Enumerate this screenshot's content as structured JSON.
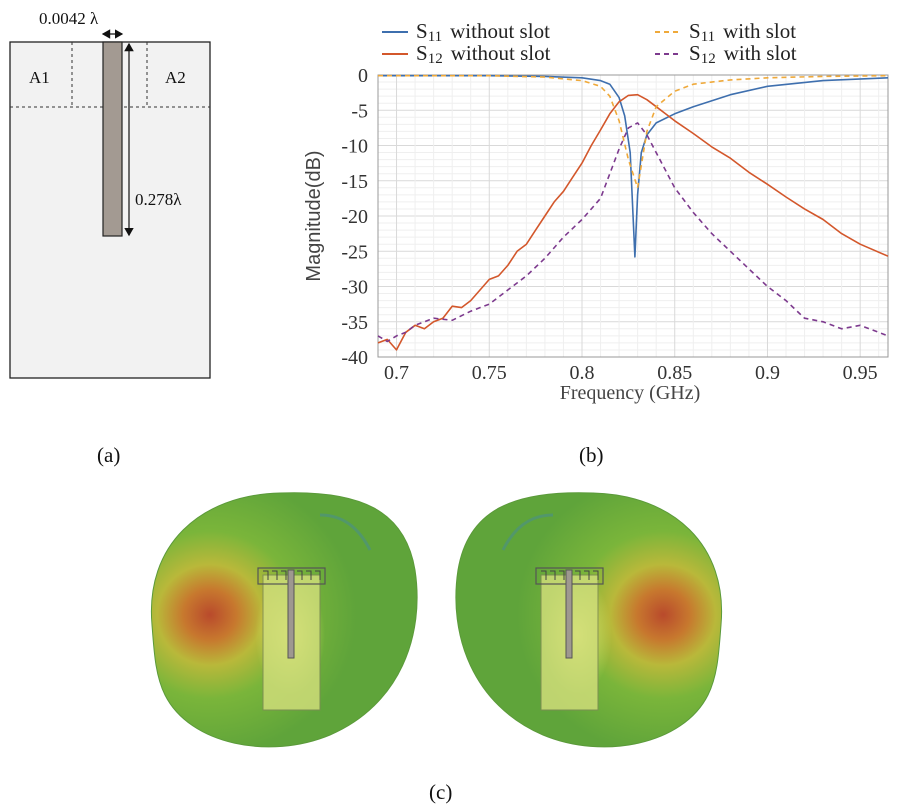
{
  "panel_a": {
    "label": "(a)",
    "width_dim": "0.0042 λ",
    "length_dim": "0.278λ",
    "area_left": "A1",
    "area_right": "A2"
  },
  "panel_b": {
    "label": "(b)",
    "legend": [
      {
        "sym": "S",
        "sub": "11",
        "text": "without slot",
        "color": "#3e6fae",
        "dash": ""
      },
      {
        "sym": "S",
        "sub": "12",
        "text": "without slot",
        "color": "#d3572b",
        "dash": ""
      },
      {
        "sym": "S",
        "sub": "11",
        "text": "with slot",
        "color": "#efa93a",
        "dash": "5,4"
      },
      {
        "sym": "S",
        "sub": "12",
        "text": "with slot",
        "color": "#7d3a8e",
        "dash": "5,4"
      }
    ]
  },
  "panel_c": {
    "label": "(c)"
  },
  "chart_data": {
    "type": "line",
    "xlabel": "Frequency (GHz)",
    "ylabel": "Magnitude(dB)",
    "xlim": [
      0.69,
      0.965
    ],
    "ylim": [
      -40,
      0
    ],
    "xticks": [
      0.7,
      0.75,
      0.8,
      0.85,
      0.9,
      0.95
    ],
    "xtick_labels": [
      "0.7",
      "0.75",
      "0.8",
      "0.85",
      "0.9",
      "0.95"
    ],
    "yticks": [
      0,
      -5,
      -10,
      -15,
      -20,
      -25,
      -30,
      -35,
      -40
    ],
    "ytick_labels": [
      "0",
      "-5",
      "-10",
      "-15",
      "-20",
      "-25",
      "-30",
      "-35",
      "-40"
    ],
    "grid": true,
    "legend_position": "top",
    "series": [
      {
        "name": "S11 without slot",
        "color": "#3e6fae",
        "dash": "",
        "x": [
          0.69,
          0.75,
          0.78,
          0.8,
          0.81,
          0.815,
          0.82,
          0.823,
          0.826,
          0.8285,
          0.83,
          0.832,
          0.835,
          0.84,
          0.85,
          0.86,
          0.88,
          0.9,
          0.93,
          0.965
        ],
        "y": [
          -0.1,
          -0.1,
          -0.2,
          -0.4,
          -0.8,
          -1.3,
          -3.2,
          -5.8,
          -11,
          -25.8,
          -17,
          -11,
          -8.5,
          -6.8,
          -5.5,
          -4.5,
          -2.8,
          -1.6,
          -0.8,
          -0.4
        ]
      },
      {
        "name": "S12 without slot",
        "color": "#d3572b",
        "dash": "",
        "x": [
          0.69,
          0.695,
          0.7,
          0.705,
          0.71,
          0.715,
          0.72,
          0.725,
          0.73,
          0.735,
          0.74,
          0.745,
          0.75,
          0.755,
          0.76,
          0.765,
          0.77,
          0.775,
          0.78,
          0.785,
          0.79,
          0.795,
          0.8,
          0.805,
          0.81,
          0.815,
          0.82,
          0.825,
          0.83,
          0.835,
          0.84,
          0.845,
          0.85,
          0.86,
          0.87,
          0.88,
          0.89,
          0.9,
          0.91,
          0.92,
          0.93,
          0.94,
          0.95,
          0.965
        ],
        "y": [
          -38,
          -37.5,
          -39,
          -36.5,
          -35.5,
          -36,
          -35,
          -34.5,
          -32.8,
          -33,
          -32,
          -30.5,
          -29,
          -28.5,
          -27,
          -25,
          -24,
          -22,
          -20,
          -18,
          -16.5,
          -14.5,
          -12.5,
          -10,
          -7.8,
          -5.5,
          -3.8,
          -2.9,
          -2.8,
          -3.5,
          -4.5,
          -5.5,
          -6.5,
          -8.3,
          -10.2,
          -11.8,
          -13.8,
          -15.5,
          -17.3,
          -19,
          -20.5,
          -22.5,
          -24,
          -25.7
        ]
      },
      {
        "name": "S11 with slot",
        "color": "#efa93a",
        "dash": "5,4",
        "x": [
          0.69,
          0.75,
          0.78,
          0.8,
          0.81,
          0.815,
          0.82,
          0.825,
          0.83,
          0.835,
          0.84,
          0.85,
          0.86,
          0.88,
          0.9,
          0.93,
          0.965
        ],
        "y": [
          -0.1,
          -0.1,
          -0.3,
          -0.8,
          -1.6,
          -3,
          -6.5,
          -12,
          -16,
          -8,
          -4.5,
          -2.3,
          -1.3,
          -0.7,
          -0.4,
          -0.2,
          -0.1
        ]
      },
      {
        "name": "S12 with slot",
        "color": "#7d3a8e",
        "dash": "5,4",
        "x": [
          0.69,
          0.695,
          0.7,
          0.705,
          0.71,
          0.72,
          0.73,
          0.74,
          0.75,
          0.76,
          0.77,
          0.78,
          0.79,
          0.8,
          0.81,
          0.815,
          0.82,
          0.825,
          0.83,
          0.835,
          0.84,
          0.85,
          0.86,
          0.87,
          0.88,
          0.89,
          0.9,
          0.91,
          0.92,
          0.93,
          0.94,
          0.95,
          0.965
        ],
        "y": [
          -37,
          -37.8,
          -37,
          -36.5,
          -35.5,
          -34.5,
          -34.8,
          -33.5,
          -32.5,
          -30.5,
          -28.5,
          -26,
          -23,
          -20.5,
          -17.5,
          -14,
          -10.5,
          -7.5,
          -6.8,
          -8.5,
          -11,
          -16,
          -19.5,
          -22.5,
          -25,
          -27.5,
          -30,
          -32,
          -34.5,
          -35,
          -36,
          -35.5,
          -37
        ]
      }
    ]
  }
}
